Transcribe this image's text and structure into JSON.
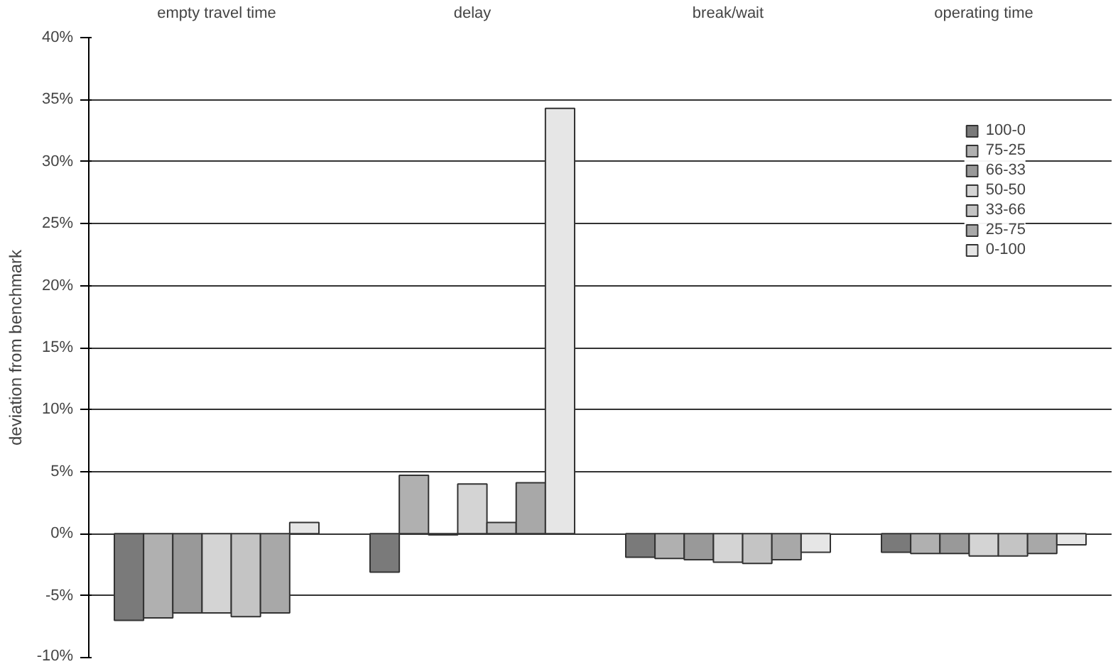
{
  "chart_data": {
    "type": "bar",
    "categories": [
      "empty travel time",
      "delay",
      "break/wait",
      "operating time"
    ],
    "ylabel": "deviation from benchmark",
    "ylim": [
      -10,
      40
    ],
    "yticks": [
      {
        "value": -10,
        "label": "-10%"
      },
      {
        "value": -5,
        "label": "-5%"
      },
      {
        "value": 0,
        "label": "0%"
      },
      {
        "value": 5,
        "label": "5%"
      },
      {
        "value": 10,
        "label": "10%"
      },
      {
        "value": 15,
        "label": "15%"
      },
      {
        "value": 20,
        "label": "20%"
      },
      {
        "value": 25,
        "label": "25%"
      },
      {
        "value": 30,
        "label": "30%"
      },
      {
        "value": 35,
        "label": "35%"
      },
      {
        "value": 40,
        "label": "40%"
      }
    ],
    "grid": "y",
    "legend": "top right",
    "series": [
      {
        "name": "100-0",
        "color": "#7a7a7a",
        "values": [
          -7.0,
          -3.1,
          -1.9,
          -1.5
        ]
      },
      {
        "name": "75-25",
        "color": "#b0b0b0",
        "values": [
          -6.8,
          4.7,
          -2.0,
          -1.6
        ]
      },
      {
        "name": "66-33",
        "color": "#999999",
        "values": [
          -6.4,
          -0.1,
          -2.1,
          -1.6
        ]
      },
      {
        "name": "50-50",
        "color": "#d4d4d4",
        "values": [
          -6.4,
          4.0,
          -2.3,
          -1.8
        ]
      },
      {
        "name": "33-66",
        "color": "#c4c4c4",
        "values": [
          -6.7,
          0.9,
          -2.4,
          -1.8
        ]
      },
      {
        "name": "25-75",
        "color": "#a8a8a8",
        "values": [
          -6.4,
          4.1,
          -2.1,
          -1.6
        ]
      },
      {
        "name": "0-100",
        "color": "#e6e6e6",
        "values": [
          0.9,
          34.3,
          -1.5,
          -0.9
        ]
      }
    ]
  }
}
